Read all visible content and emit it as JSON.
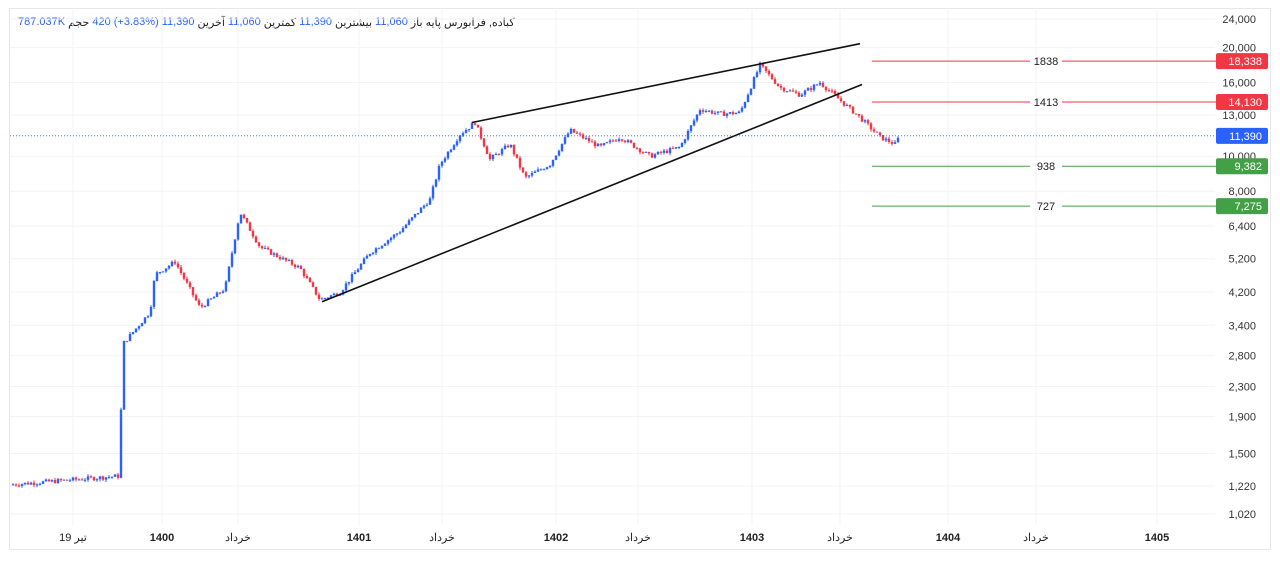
{
  "legend": {
    "volume_value": "787.037K",
    "volume_label": "حجم",
    "change": "420 (+3.83%)",
    "last_value": "11,390",
    "last_label": "آخرین",
    "low_value": "11,060",
    "low_label": "کمترین",
    "high_value": "11,390",
    "high_label": "بیشترین",
    "open_value": "11,060",
    "open_label": "باز",
    "symbol": "کباده, فرابورس پایه"
  },
  "colors": {
    "up": "#2962ff",
    "down": "#f23645",
    "resistance": "#f23645",
    "support": "#43a047",
    "current": "#2962ff"
  },
  "chart_data": {
    "type": "candlestick",
    "scale": "log",
    "ylim": [
      1020,
      24000
    ],
    "y_ticks": [
      "24,000",
      "20,000",
      "16,000",
      "13,000",
      "10,000",
      "8,000",
      "6,400",
      "5,200",
      "4,200",
      "3,400",
      "2,800",
      "2,300",
      "1,900",
      "1,500",
      "1,220",
      "1,020"
    ],
    "x_ticks": [
      "19 تیر",
      "1400",
      "خرداد",
      "1401",
      "خرداد",
      "1402",
      "خرداد",
      "1403",
      "خرداد",
      "1404",
      "خرداد",
      "1405"
    ],
    "price_path_approx": [
      [
        0,
        1230
      ],
      [
        11,
        1300
      ],
      [
        11.2,
        3000
      ],
      [
        14,
        3700
      ],
      [
        14.5,
        4700
      ],
      [
        16.5,
        5100
      ],
      [
        19,
        3800
      ],
      [
        21.5,
        4300
      ],
      [
        23,
        7000
      ],
      [
        25,
        5600
      ],
      [
        29,
        4900
      ],
      [
        31,
        4000
      ],
      [
        33,
        4200
      ],
      [
        36,
        5400
      ],
      [
        39,
        6200
      ],
      [
        42,
        7600
      ],
      [
        43,
        9500
      ],
      [
        45,
        11500
      ],
      [
        46.5,
        12400
      ],
      [
        48,
        9800
      ],
      [
        50,
        10800
      ],
      [
        51.5,
        8700
      ],
      [
        54,
        9500
      ],
      [
        56,
        11800
      ],
      [
        59,
        10600
      ],
      [
        61,
        11300
      ],
      [
        64,
        10000
      ],
      [
        67,
        10600
      ],
      [
        69,
        13500
      ],
      [
        71,
        13100
      ],
      [
        73,
        13200
      ],
      [
        75,
        17900
      ],
      [
        77,
        15500
      ],
      [
        79,
        14800
      ],
      [
        81,
        16000
      ],
      [
        83,
        14300
      ],
      [
        85,
        12800
      ],
      [
        87,
        11300
      ],
      [
        88.5,
        10800
      ],
      [
        89,
        11390
      ]
    ],
    "current_price": {
      "value": 11390,
      "label": "11,390"
    },
    "levels": [
      {
        "name": "1838",
        "price": 18338,
        "label": "18,338",
        "type": "resistance"
      },
      {
        "name": "1413",
        "price": 14130,
        "label": "14,130",
        "type": "resistance"
      },
      {
        "name": "938",
        "price": 9382,
        "label": "9,382",
        "type": "support"
      },
      {
        "name": "727",
        "price": 7275,
        "label": "7,275",
        "type": "support"
      }
    ],
    "trendlines": [
      {
        "name": "wedge-upper",
        "from": [
          46.2,
          12400
        ],
        "to": [
          85,
          20500
        ]
      },
      {
        "name": "wedge-lower",
        "from": [
          31.2,
          3950
        ],
        "to": [
          85.2,
          15800
        ]
      }
    ]
  }
}
